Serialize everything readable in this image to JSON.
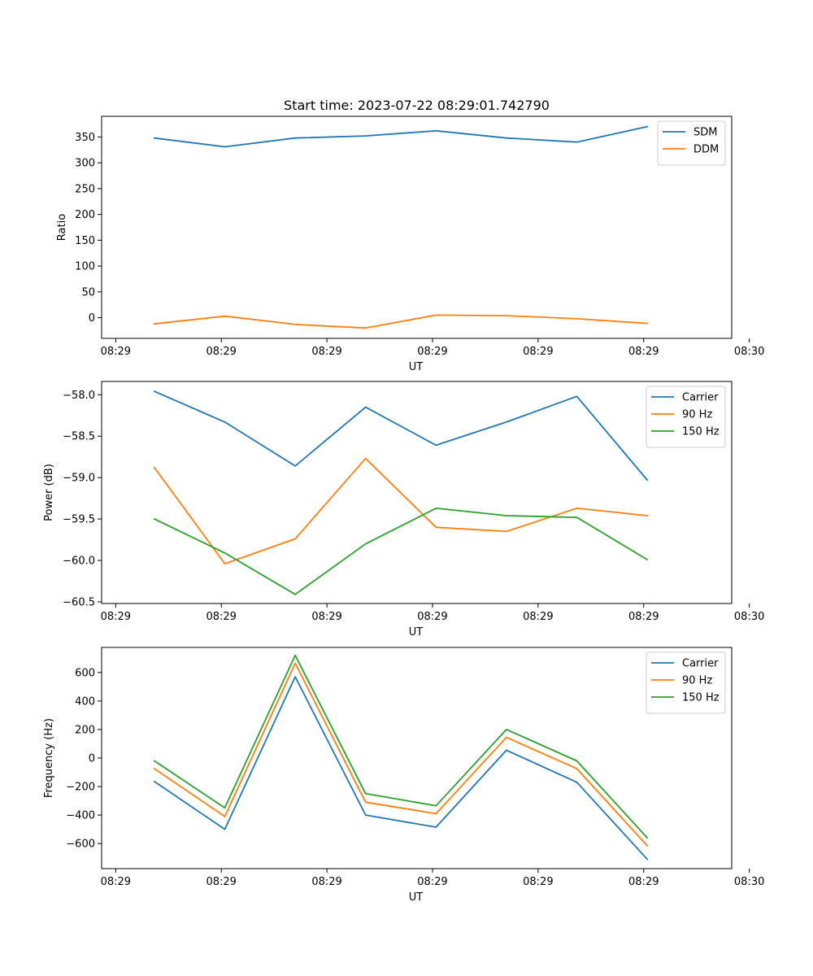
{
  "figure_title": "Start time: 2023-07-22 08:29:01.742790",
  "chart_data": [
    {
      "type": "line",
      "title": "Start time: 2023-07-22 08:29:01.742790",
      "xlabel": "UT",
      "ylabel": "Ratio",
      "x": [
        1,
        2,
        3,
        4,
        5,
        6,
        7,
        8
      ],
      "xlim": [
        0.25,
        9.2
      ],
      "x_ticks": [
        0.45,
        1.95,
        3.45,
        4.95,
        6.45,
        7.95,
        9.45
      ],
      "x_tick_labels": [
        "08:29",
        "08:29",
        "08:29",
        "08:29",
        "08:29",
        "08:29",
        "08:30"
      ],
      "ylim": [
        -40,
        390
      ],
      "y_ticks": [
        0,
        50,
        100,
        150,
        200,
        250,
        300,
        350
      ],
      "y_tick_labels": [
        "0",
        "50",
        "100",
        "150",
        "200",
        "250",
        "300",
        "350"
      ],
      "legend_position": "top-right",
      "series": [
        {
          "name": "SDM",
          "color": "#1f77b4",
          "values": [
            348,
            331,
            348,
            352,
            362,
            348,
            340,
            370
          ]
        },
        {
          "name": "DDM",
          "color": "#ff7f0e",
          "values": [
            -12,
            3,
            -13,
            -20,
            5,
            4,
            -2,
            -11
          ]
        }
      ]
    },
    {
      "type": "line",
      "xlabel": "UT",
      "ylabel": "Power (dB)",
      "x": [
        1,
        2,
        3,
        4,
        5,
        6,
        7,
        8
      ],
      "xlim": [
        0.25,
        9.2
      ],
      "x_ticks": [
        0.45,
        1.95,
        3.45,
        4.95,
        6.45,
        7.95,
        9.45
      ],
      "x_tick_labels": [
        "08:29",
        "08:29",
        "08:29",
        "08:29",
        "08:29",
        "08:29",
        "08:30"
      ],
      "ylim": [
        -60.52,
        -57.84
      ],
      "y_ticks": [
        -60.5,
        -60.0,
        -59.5,
        -59.0,
        -58.5,
        -58.0
      ],
      "y_tick_labels": [
        "−60.5",
        "−60.0",
        "−59.5",
        "−59.0",
        "−58.5",
        "−58.0"
      ],
      "legend_position": "top-right",
      "series": [
        {
          "name": "Carrier",
          "color": "#1f77b4",
          "values": [
            -57.96,
            -58.33,
            -58.86,
            -58.15,
            -58.61,
            -58.33,
            -58.02,
            -59.03
          ]
        },
        {
          "name": "90 Hz",
          "color": "#ff7f0e",
          "values": [
            -58.88,
            -60.04,
            -59.74,
            -58.77,
            -59.6,
            -59.65,
            -59.37,
            -59.46
          ]
        },
        {
          "name": "150 Hz",
          "color": "#2ca02c",
          "values": [
            -59.5,
            -59.91,
            -60.41,
            -59.8,
            -59.37,
            -59.46,
            -59.48,
            -59.99
          ]
        }
      ]
    },
    {
      "type": "line",
      "xlabel": "UT",
      "ylabel": "Frequency (Hz)",
      "x": [
        1,
        2,
        3,
        4,
        5,
        6,
        7,
        8
      ],
      "xlim": [
        0.25,
        9.2
      ],
      "x_ticks": [
        0.45,
        1.95,
        3.45,
        4.95,
        6.45,
        7.95,
        9.45
      ],
      "x_tick_labels": [
        "08:29",
        "08:29",
        "08:29",
        "08:29",
        "08:29",
        "08:29",
        "08:30"
      ],
      "ylim": [
        -776,
        776
      ],
      "y_ticks": [
        -600,
        -400,
        -200,
        0,
        200,
        400,
        600
      ],
      "y_tick_labels": [
        "−600",
        "−400",
        "−200",
        "0",
        "200",
        "400",
        "600"
      ],
      "legend_position": "top-right",
      "series": [
        {
          "name": "Carrier",
          "color": "#1f77b4",
          "values": [
            -165,
            -500,
            570,
            -400,
            -485,
            55,
            -170,
            -710
          ]
        },
        {
          "name": "90 Hz",
          "color": "#ff7f0e",
          "values": [
            -75,
            -410,
            665,
            -310,
            -390,
            145,
            -75,
            -615
          ]
        },
        {
          "name": "150 Hz",
          "color": "#2ca02c",
          "values": [
            -20,
            -350,
            720,
            -250,
            -335,
            200,
            -20,
            -560
          ]
        }
      ]
    }
  ]
}
